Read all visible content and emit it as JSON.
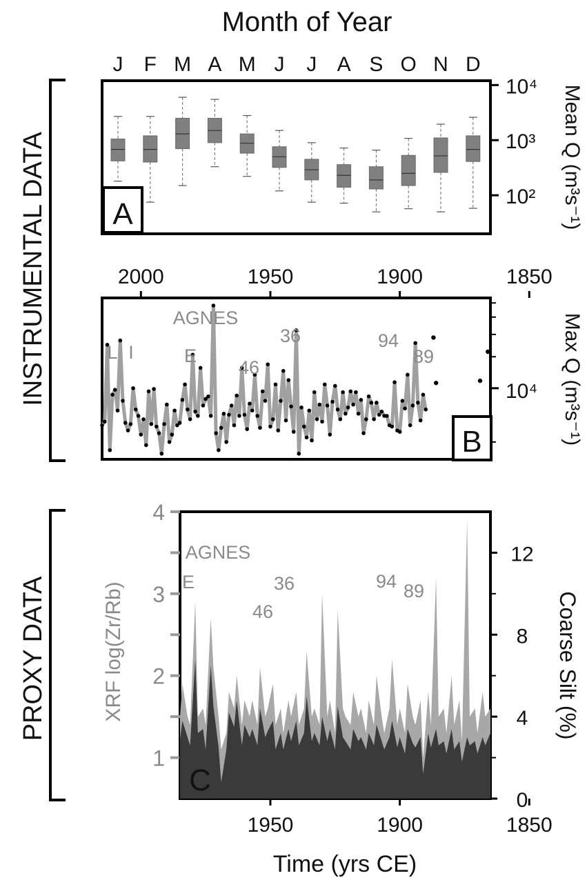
{
  "labels": {
    "top_axis_title": "Month of Year",
    "bottom_axis_title": "Time (yrs CE)",
    "instrumental": "INSTRUMENTAL  DATA",
    "proxy": "PROXY DATA",
    "panel_a_ylabel": "Mean Q (m³s⁻¹)",
    "panel_b_ylabel": "Max Q (m³s⁻¹)",
    "panel_c_left_ylabel": "XRF log(Zr/Rb)",
    "panel_c_right_ylabel": "Coarse Silt (%)"
  },
  "chart_data": [
    {
      "panel": "A",
      "type": "box",
      "categories": [
        "J",
        "F",
        "M",
        "A",
        "M",
        "J",
        "J",
        "A",
        "S",
        "O",
        "N",
        "D"
      ],
      "y_scale": "log",
      "y_ticks": [
        "10⁴",
        "10³",
        "10²"
      ],
      "ylim": [
        20,
        12000
      ],
      "boxes": [
        {
          "min": 180,
          "q1": 420,
          "median": 680,
          "q3": 1050,
          "max": 2700
        },
        {
          "min": 75,
          "q1": 400,
          "median": 680,
          "q3": 1200,
          "max": 2700
        },
        {
          "min": 150,
          "q1": 700,
          "median": 1300,
          "q3": 2500,
          "max": 6000
        },
        {
          "min": 330,
          "q1": 900,
          "median": 1500,
          "q3": 2500,
          "max": 5500
        },
        {
          "min": 220,
          "q1": 580,
          "median": 880,
          "q3": 1300,
          "max": 2800
        },
        {
          "min": 120,
          "q1": 320,
          "median": 500,
          "q3": 760,
          "max": 1500
        },
        {
          "min": 75,
          "q1": 190,
          "median": 290,
          "q3": 450,
          "max": 900
        },
        {
          "min": 72,
          "q1": 140,
          "median": 230,
          "q3": 360,
          "max": 720
        },
        {
          "min": 50,
          "q1": 130,
          "median": 190,
          "q3": 330,
          "max": 660
        },
        {
          "min": 57,
          "q1": 150,
          "median": 250,
          "q3": 530,
          "max": 1080
        },
        {
          "min": 50,
          "q1": 260,
          "median": 520,
          "q3": 1100,
          "max": 1950
        },
        {
          "min": 58,
          "q1": 410,
          "median": 680,
          "q3": 1200,
          "max": 2600
        }
      ]
    },
    {
      "panel": "B",
      "type": "line",
      "x_ticks": [
        2000,
        1950,
        1900,
        1850
      ],
      "xlim": [
        2015,
        1865
      ],
      "y_scale": "log",
      "y_tick_label": "10⁴",
      "ylim": [
        4000,
        32000
      ],
      "series": [
        {
          "years": [
            2015,
            2014,
            2013,
            2012,
            2011,
            2010,
            2009,
            2008,
            2007,
            2006,
            2005,
            2004,
            2003,
            2002,
            2001,
            2000,
            1999,
            1998,
            1997,
            1996,
            1995,
            1994,
            1993,
            1992,
            1991,
            1990,
            1989,
            1988,
            1987,
            1986,
            1985,
            1984,
            1983,
            1982,
            1981,
            1980,
            1979,
            1978,
            1977,
            1976,
            1975,
            1974,
            1973,
            1972,
            1971,
            1970,
            1969,
            1968,
            1967,
            1966,
            1965,
            1964,
            1963,
            1962,
            1961,
            1960,
            1959,
            1958,
            1957,
            1956,
            1955,
            1954,
            1953,
            1952,
            1951,
            1950,
            1949,
            1948,
            1947,
            1946,
            1945,
            1944,
            1943,
            1942,
            1941,
            1940,
            1939,
            1938,
            1937,
            1936,
            1935,
            1934,
            1933,
            1932,
            1931,
            1930,
            1929,
            1928,
            1927,
            1926,
            1925,
            1924,
            1923,
            1922,
            1921,
            1920,
            1919,
            1918,
            1917,
            1916,
            1915,
            1914,
            1913,
            1912,
            1911,
            1910,
            1909,
            1908,
            1907,
            1906,
            1905,
            1904,
            1903,
            1902,
            1901,
            1900,
            1899,
            1898,
            1897,
            1896,
            1895,
            1894,
            1893,
            1892,
            1891,
            1890
          ],
          "values": [
            6200,
            6500,
            17500,
            4500,
            9200,
            9800,
            7500,
            18500,
            8500,
            6400,
            5800,
            6300,
            10000,
            7600,
            7000,
            5500,
            6700,
            4800,
            9600,
            6300,
            9900,
            6100,
            5600,
            4300,
            6300,
            8100,
            5000,
            5500,
            7500,
            6200,
            6400,
            8600,
            10500,
            7600,
            6700,
            15400,
            7400,
            7000,
            13000,
            8000,
            8700,
            9000,
            7000,
            29000,
            5600,
            4500,
            6000,
            7200,
            5000,
            7100,
            8000,
            6200,
            9100,
            7000,
            13000,
            7100,
            5900,
            8200,
            7500,
            11900,
            7000,
            6000,
            9600,
            8500,
            13600,
            6100,
            6700,
            10500,
            5800,
            8500,
            12500,
            6600,
            11100,
            7900,
            5700,
            21100,
            4300,
            7800,
            6100,
            5300,
            7500,
            5100,
            9500,
            6700,
            8100,
            6500,
            10500,
            8000,
            5500,
            8400,
            10300,
            7600,
            6700,
            9500,
            7200,
            7800,
            9600,
            8100,
            9500,
            7200,
            8600,
            5600,
            6700,
            9000,
            8300,
            6700,
            8300,
            7100,
            7400,
            7000,
            7000,
            6200,
            6100,
            10800,
            5800,
            5700,
            8500,
            7700,
            11900,
            6200,
            8000,
            17900,
            8300,
            6600,
            9200,
            7600
          ]
        },
        {
          "years": [
            1887,
            1886,
            1869,
            1866
          ],
          "values": [
            19200,
            10700,
            11000,
            16000
          ]
        }
      ],
      "annotations": [
        "L",
        "I",
        "E",
        "AGNES",
        "46",
        "36",
        "94",
        "89"
      ]
    },
    {
      "panel": "C",
      "type": "area",
      "xlim": [
        2015,
        1865
      ],
      "x_ticks": [
        1950,
        1900,
        1850
      ],
      "left_axis": {
        "label": "XRF log(Zr/Rb)",
        "ylim": [
          0.5,
          4
        ],
        "ticks": [
          1,
          2,
          3,
          4
        ],
        "minor_ticks": [
          1.5,
          2.5,
          3.5
        ]
      },
      "right_axis": {
        "label": "Coarse Silt (%)",
        "ylim": [
          0,
          14
        ],
        "ticks": [
          0,
          4,
          8,
          12
        ],
        "minor_ticks": [
          2,
          6,
          10
        ]
      },
      "series": [
        {
          "name": "XRF log(Zr/Rb)",
          "axis": "left",
          "color": "#a8a8a8",
          "x": [
            2015,
            2014,
            2012,
            2011,
            2009,
            2008,
            2006,
            2005,
            2003,
            2002,
            2000,
            1999,
            1997,
            1996,
            1994,
            1993,
            1991,
            1990,
            1988,
            1987,
            1985,
            1984,
            1982,
            1981,
            1979,
            1978,
            1976,
            1975,
            1973,
            1972,
            1970,
            1969,
            1967,
            1966,
            1964,
            1963,
            1961,
            1960,
            1958,
            1957,
            1955,
            1954,
            1952,
            1951,
            1949,
            1948,
            1946,
            1945,
            1943,
            1942,
            1940,
            1939,
            1937,
            1936,
            1934,
            1933,
            1931,
            1930,
            1928,
            1927,
            1925,
            1924,
            1922,
            1921,
            1919,
            1918,
            1916,
            1915,
            1913,
            1912,
            1910,
            1909,
            1907,
            1906,
            1904,
            1903,
            1901,
            1900,
            1898,
            1897,
            1895,
            1894,
            1892,
            1891,
            1889,
            1888,
            1886,
            1885,
            1883,
            1882,
            1880,
            1879,
            1877,
            1876,
            1874,
            1873,
            1871,
            1870,
            1868,
            1867,
            1865
          ],
          "y": [
            1.45,
            1.25,
            1.0,
            1.3,
            1.2,
            3.1,
            1.5,
            1.9,
            1.6,
            2.4,
            1.8,
            3.3,
            2.2,
            1.6,
            1.5,
            1.4,
            1.8,
            1.3,
            1.5,
            1.7,
            1.45,
            1.9,
            1.5,
            1.4,
            2.9,
            1.5,
            1.6,
            1.4,
            2.7,
            2.1,
            1.5,
            1.1,
            1.3,
            1.8,
            1.6,
            2.0,
            1.4,
            1.7,
            1.5,
            1.7,
            1.4,
            2.1,
            1.5,
            1.6,
            1.9,
            1.4,
            1.6,
            1.3,
            1.7,
            1.5,
            1.8,
            1.4,
            1.6,
            2.3,
            1.5,
            1.6,
            1.4,
            3.0,
            1.5,
            1.7,
            1.3,
            2.8,
            1.6,
            1.5,
            1.4,
            1.8,
            1.5,
            1.6,
            1.3,
            1.7,
            1.4,
            2.0,
            1.5,
            1.3,
            1.6,
            2.2,
            1.4,
            1.6,
            1.3,
            1.9,
            1.5,
            1.4,
            1.7,
            1.0,
            1.8,
            1.4,
            3.2,
            1.5,
            1.6,
            1.3,
            2.0,
            1.4,
            1.7,
            1.2,
            3.9,
            1.5,
            1.6,
            1.3,
            1.8,
            1.5,
            1.6
          ]
        },
        {
          "name": "Coarse Silt (%)",
          "axis": "right",
          "color": "#3a3a3a",
          "x": [
            2015,
            2014,
            2012,
            2011,
            2009,
            2008,
            2006,
            2005,
            2003,
            2002,
            2000,
            1999,
            1997,
            1996,
            1994,
            1993,
            1991,
            1990,
            1988,
            1987,
            1985,
            1984,
            1982,
            1981,
            1979,
            1978,
            1976,
            1975,
            1973,
            1972,
            1970,
            1969,
            1967,
            1966,
            1964,
            1963,
            1961,
            1960,
            1958,
            1957,
            1955,
            1954,
            1952,
            1951,
            1949,
            1948,
            1946,
            1945,
            1943,
            1942,
            1940,
            1939,
            1937,
            1936,
            1934,
            1933,
            1931,
            1930,
            1928,
            1927,
            1925,
            1924,
            1922,
            1921,
            1919,
            1918,
            1916,
            1915,
            1913,
            1912,
            1910,
            1909,
            1907,
            1906,
            1904,
            1903,
            1901,
            1900,
            1898,
            1897,
            1895,
            1894,
            1892,
            1891,
            1889,
            1888,
            1886,
            1885,
            1883,
            1882,
            1880,
            1879,
            1877,
            1876,
            1874,
            1873,
            1871,
            1870,
            1868,
            1867,
            1865
          ],
          "y": [
            2.0,
            1.5,
            0.6,
            1.2,
            1.0,
            5.0,
            3.0,
            4.0,
            3.2,
            5.5,
            3.8,
            10.0,
            5.0,
            3.0,
            3.0,
            2.5,
            3.8,
            2.0,
            3.0,
            3.4,
            2.8,
            3.8,
            3.0,
            2.6,
            6.8,
            3.2,
            3.4,
            2.4,
            6.5,
            4.5,
            2.5,
            0.8,
            2.4,
            4.2,
            3.5,
            4.8,
            2.6,
            3.6,
            3.0,
            3.4,
            2.6,
            4.4,
            3.0,
            3.3,
            3.8,
            2.4,
            3.2,
            2.4,
            3.4,
            2.8,
            3.8,
            2.6,
            3.2,
            5.0,
            2.8,
            3.2,
            2.6,
            4.0,
            2.8,
            3.4,
            2.4,
            4.5,
            3.0,
            2.8,
            2.4,
            3.4,
            2.8,
            3.0,
            2.4,
            3.2,
            2.6,
            3.6,
            2.8,
            2.4,
            3.0,
            3.8,
            2.5,
            3.0,
            2.2,
            3.4,
            2.7,
            2.5,
            3.0,
            1.2,
            3.2,
            2.5,
            3.4,
            2.6,
            2.8,
            2.2,
            3.4,
            2.4,
            2.8,
            1.8,
            3.0,
            2.6,
            2.8,
            2.2,
            3.0,
            2.6,
            3.2
          ]
        }
      ],
      "annotations": [
        "AGNES",
        "E",
        "46",
        "36",
        "94",
        "89"
      ]
    }
  ]
}
